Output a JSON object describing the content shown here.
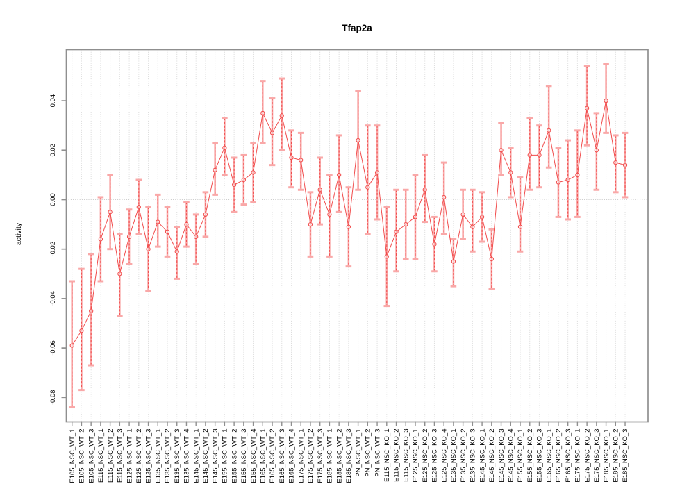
{
  "chart_data": {
    "type": "line",
    "title": "Tfap2a",
    "xlabel": "",
    "ylabel": "activity",
    "legend": "none",
    "grid": "vertical dotted line per category; dotted horizontal line at 0",
    "ylim": [
      -0.089,
      0.061
    ],
    "yticks": [
      "0.04",
      "0.02",
      "0.00",
      "-0.02",
      "-0.04",
      "-0.06",
      "-0.08"
    ],
    "ytick_values": [
      0.04,
      0.02,
      0.0,
      -0.02,
      -0.04,
      -0.06,
      -0.08
    ],
    "categories": [
      "E105_NSC_WT_1",
      "E105_NSC_WT_2",
      "E105_NSC_WT_3",
      "E115_NSC_WT_1",
      "E115_NSC_WT_2",
      "E115_NSC_WT_3",
      "E125_NSC_WT_1",
      "E125_NSC_WT_2",
      "E125_NSC_WT_3",
      "E135_NSC_WT_1",
      "E135_NSC_WT_2",
      "E135_NSC_WT_3",
      "E135_NSC_WT_4",
      "E145_NSC_WT_1",
      "E145_NSC_WT_2",
      "E145_NSC_WT_3",
      "E155_NSC_WT_1",
      "E155_NSC_WT_2",
      "E155_NSC_WT_3",
      "E155_NSC_WT_4",
      "E165_NSC_WT_1",
      "E165_NSC_WT_2",
      "E165_NSC_WT_3",
      "E165_NSC_WT_4",
      "E175_NSC_WT_1",
      "E175_NSC_WT_2",
      "E175_NSC_WT_3",
      "E185_NSC_WT_1",
      "E185_NSC_WT_2",
      "E185_NSC_WT_3",
      "PN_NSC_WT_1",
      "PN_NSC_WT_2",
      "PN_NSC_WT_3",
      "E115_NSC_KO_1",
      "E115_NSC_KO_2",
      "E115_NSC_KO_3",
      "E125_NSC_KO_1",
      "E125_NSC_KO_2",
      "E125_NSC_KO_3",
      "E125_NSC_KO_4",
      "E135_NSC_KO_1",
      "E135_NSC_KO_2",
      "E135_NSC_KO_3",
      "E145_NSC_KO_1",
      "E145_NSC_KO_2",
      "E145_NSC_KO_3",
      "E145_NSC_KO_4",
      "E155_NSC_KO_1",
      "E155_NSC_KO_2",
      "E155_NSC_KO_3",
      "E165_NSC_KO_1",
      "E165_NSC_KO_2",
      "E165_NSC_KO_3",
      "E175_NSC_KO_1",
      "E175_NSC_KO_2",
      "E175_NSC_KO_3",
      "E185_NSC_KO_1",
      "E185_NSC_KO_2",
      "E185_NSC_KO_3"
    ],
    "series": [
      {
        "name": "activity",
        "values": [
          -0.059,
          -0.053,
          -0.045,
          -0.016,
          -0.005,
          -0.03,
          -0.015,
          -0.003,
          -0.02,
          -0.009,
          -0.013,
          -0.021,
          -0.01,
          -0.015,
          -0.006,
          0.012,
          0.021,
          0.006,
          0.008,
          0.011,
          0.035,
          0.027,
          0.034,
          0.017,
          0.016,
          -0.01,
          0.004,
          -0.006,
          0.01,
          -0.011,
          0.024,
          0.005,
          0.011,
          -0.023,
          -0.013,
          -0.01,
          -0.007,
          0.004,
          -0.018,
          0.001,
          -0.025,
          -0.006,
          -0.011,
          -0.007,
          -0.024,
          0.02,
          0.011,
          -0.011,
          0.018,
          0.018,
          0.028,
          0.007,
          0.008,
          0.01,
          0.037,
          0.02,
          0.04,
          0.015,
          0.014
        ],
        "error_low": [
          -0.084,
          -0.077,
          -0.067,
          -0.033,
          -0.02,
          -0.047,
          -0.026,
          -0.014,
          -0.037,
          -0.019,
          -0.023,
          -0.032,
          -0.019,
          -0.026,
          -0.015,
          0.002,
          0.01,
          -0.005,
          -0.002,
          -0.001,
          0.023,
          0.014,
          0.02,
          0.005,
          0.004,
          -0.023,
          -0.01,
          -0.023,
          -0.005,
          -0.027,
          0.004,
          -0.014,
          -0.008,
          -0.043,
          -0.029,
          -0.024,
          -0.024,
          -0.009,
          -0.029,
          -0.014,
          -0.035,
          -0.016,
          -0.021,
          -0.017,
          -0.036,
          0.01,
          0.001,
          -0.021,
          0.004,
          0.005,
          0.013,
          -0.007,
          -0.008,
          -0.007,
          0.022,
          0.004,
          0.027,
          0.003,
          0.001
        ],
        "error_high": [
          -0.033,
          -0.028,
          -0.022,
          0.001,
          0.01,
          -0.014,
          -0.004,
          0.008,
          -0.003,
          0.002,
          -0.003,
          -0.011,
          -0.001,
          -0.006,
          0.003,
          0.023,
          0.033,
          0.017,
          0.018,
          0.023,
          0.048,
          0.041,
          0.049,
          0.028,
          0.027,
          0.003,
          0.017,
          0.01,
          0.026,
          0.005,
          0.044,
          0.03,
          0.03,
          -0.003,
          0.004,
          0.004,
          0.01,
          0.018,
          -0.007,
          0.015,
          -0.016,
          0.004,
          0.004,
          0.003,
          -0.012,
          0.031,
          0.021,
          0.009,
          0.033,
          0.03,
          0.046,
          0.021,
          0.024,
          0.028,
          0.054,
          0.035,
          0.055,
          0.026,
          0.027
        ]
      }
    ],
    "colors": {
      "series": "#f14c4c",
      "series_light": "#f9a8a8",
      "grid": "#d8d8d8",
      "zero_line": "#c9c9c9",
      "box": "#8f8f8f",
      "text": "#000000",
      "background": "#ffffff"
    }
  }
}
